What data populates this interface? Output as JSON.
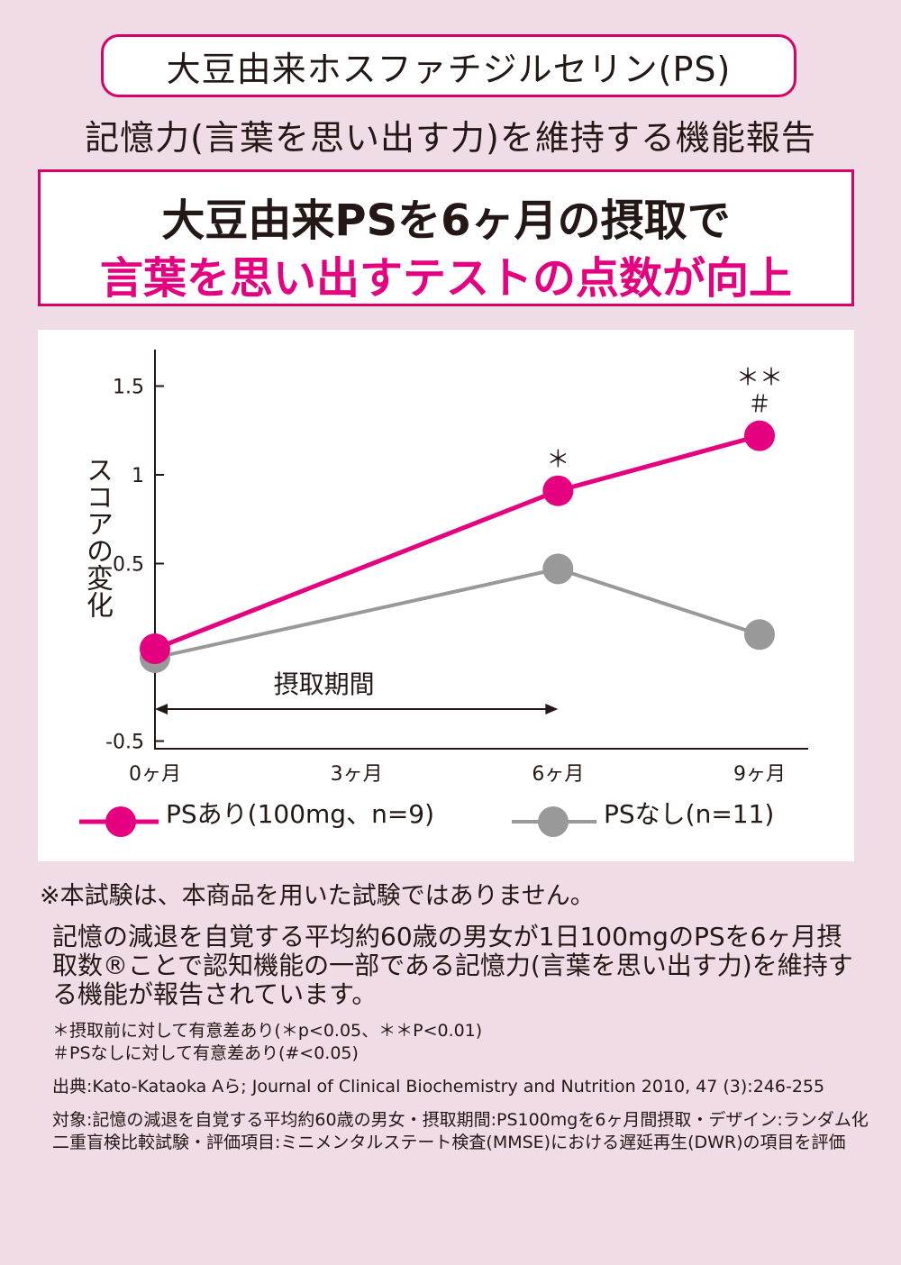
{
  "header": {
    "ingredient": "大豆由来ホスファチジルセリン(PS)",
    "claim": "記憶力(言葉を思い出す力)を維持する機能報告"
  },
  "headline": {
    "line1": "大豆由来PSを6ヶ月の摂取で",
    "line2": "言葉を思い出すテストの点数が向上"
  },
  "colors": {
    "accent": "#e4007f",
    "gray": "#999999",
    "border": "#d9006c"
  },
  "chart_data": {
    "type": "line",
    "ylabel": "スコアの変化",
    "categories": [
      "0ヶ月",
      "3ヶ月",
      "6ヶ月",
      "9ヶ月"
    ],
    "x": [
      0,
      3,
      6,
      9
    ],
    "ylim": [
      -0.5,
      1.7
    ],
    "yticks": [
      -0.5,
      0.5,
      1,
      1.5
    ],
    "ytick_labels": [
      "-0.5",
      "0.5",
      "1",
      "1.5"
    ],
    "series": [
      {
        "name": "PSあり(100mg、n=9)",
        "color": "#e4007f",
        "x": [
          0,
          6,
          9
        ],
        "values": [
          0.02,
          0.91,
          1.22
        ]
      },
      {
        "name": "PSなし(n=11)",
        "color": "#999999",
        "x": [
          0,
          6,
          9
        ],
        "values": [
          -0.03,
          0.47,
          0.1
        ]
      }
    ],
    "annotations": {
      "m6": "＊",
      "m9_top": "＊＊",
      "m9_bottom": "＃"
    },
    "period": {
      "label": "摂取期間",
      "from": 0,
      "to": 6
    }
  },
  "notes": {
    "disclaimer": "※本試験は、本商品を用いた試験ではありません。",
    "body": "記憶の減退を自覚する平均約60歳の男女が1日100mgのPSを6ヶ月摂取数®ことで認知機能の一部である記憶力(言葉を思い出す力)を維持する機能が報告されています。",
    "sig1": "＊摂取前に対して有意差あり(＊p<0.05、＊＊P<0.01)",
    "sig2": "＃PSなしに対して有意差あり(#<0.05)",
    "source": "出典:Kato-Kataoka Aら; Journal of Clinical Biochemistry and Nutrition 2010, 47 (3):246-255",
    "target": "対象:記憶の減退を自覚する平均約60歳の男女・摂取期間:PS100mgを6ヶ月間摂取・デザイン:ランダム化二重盲検比較試験・評価項目:ミニメンタルステート検査(MMSE)における遅延再生(DWR)の項目を評価"
  }
}
